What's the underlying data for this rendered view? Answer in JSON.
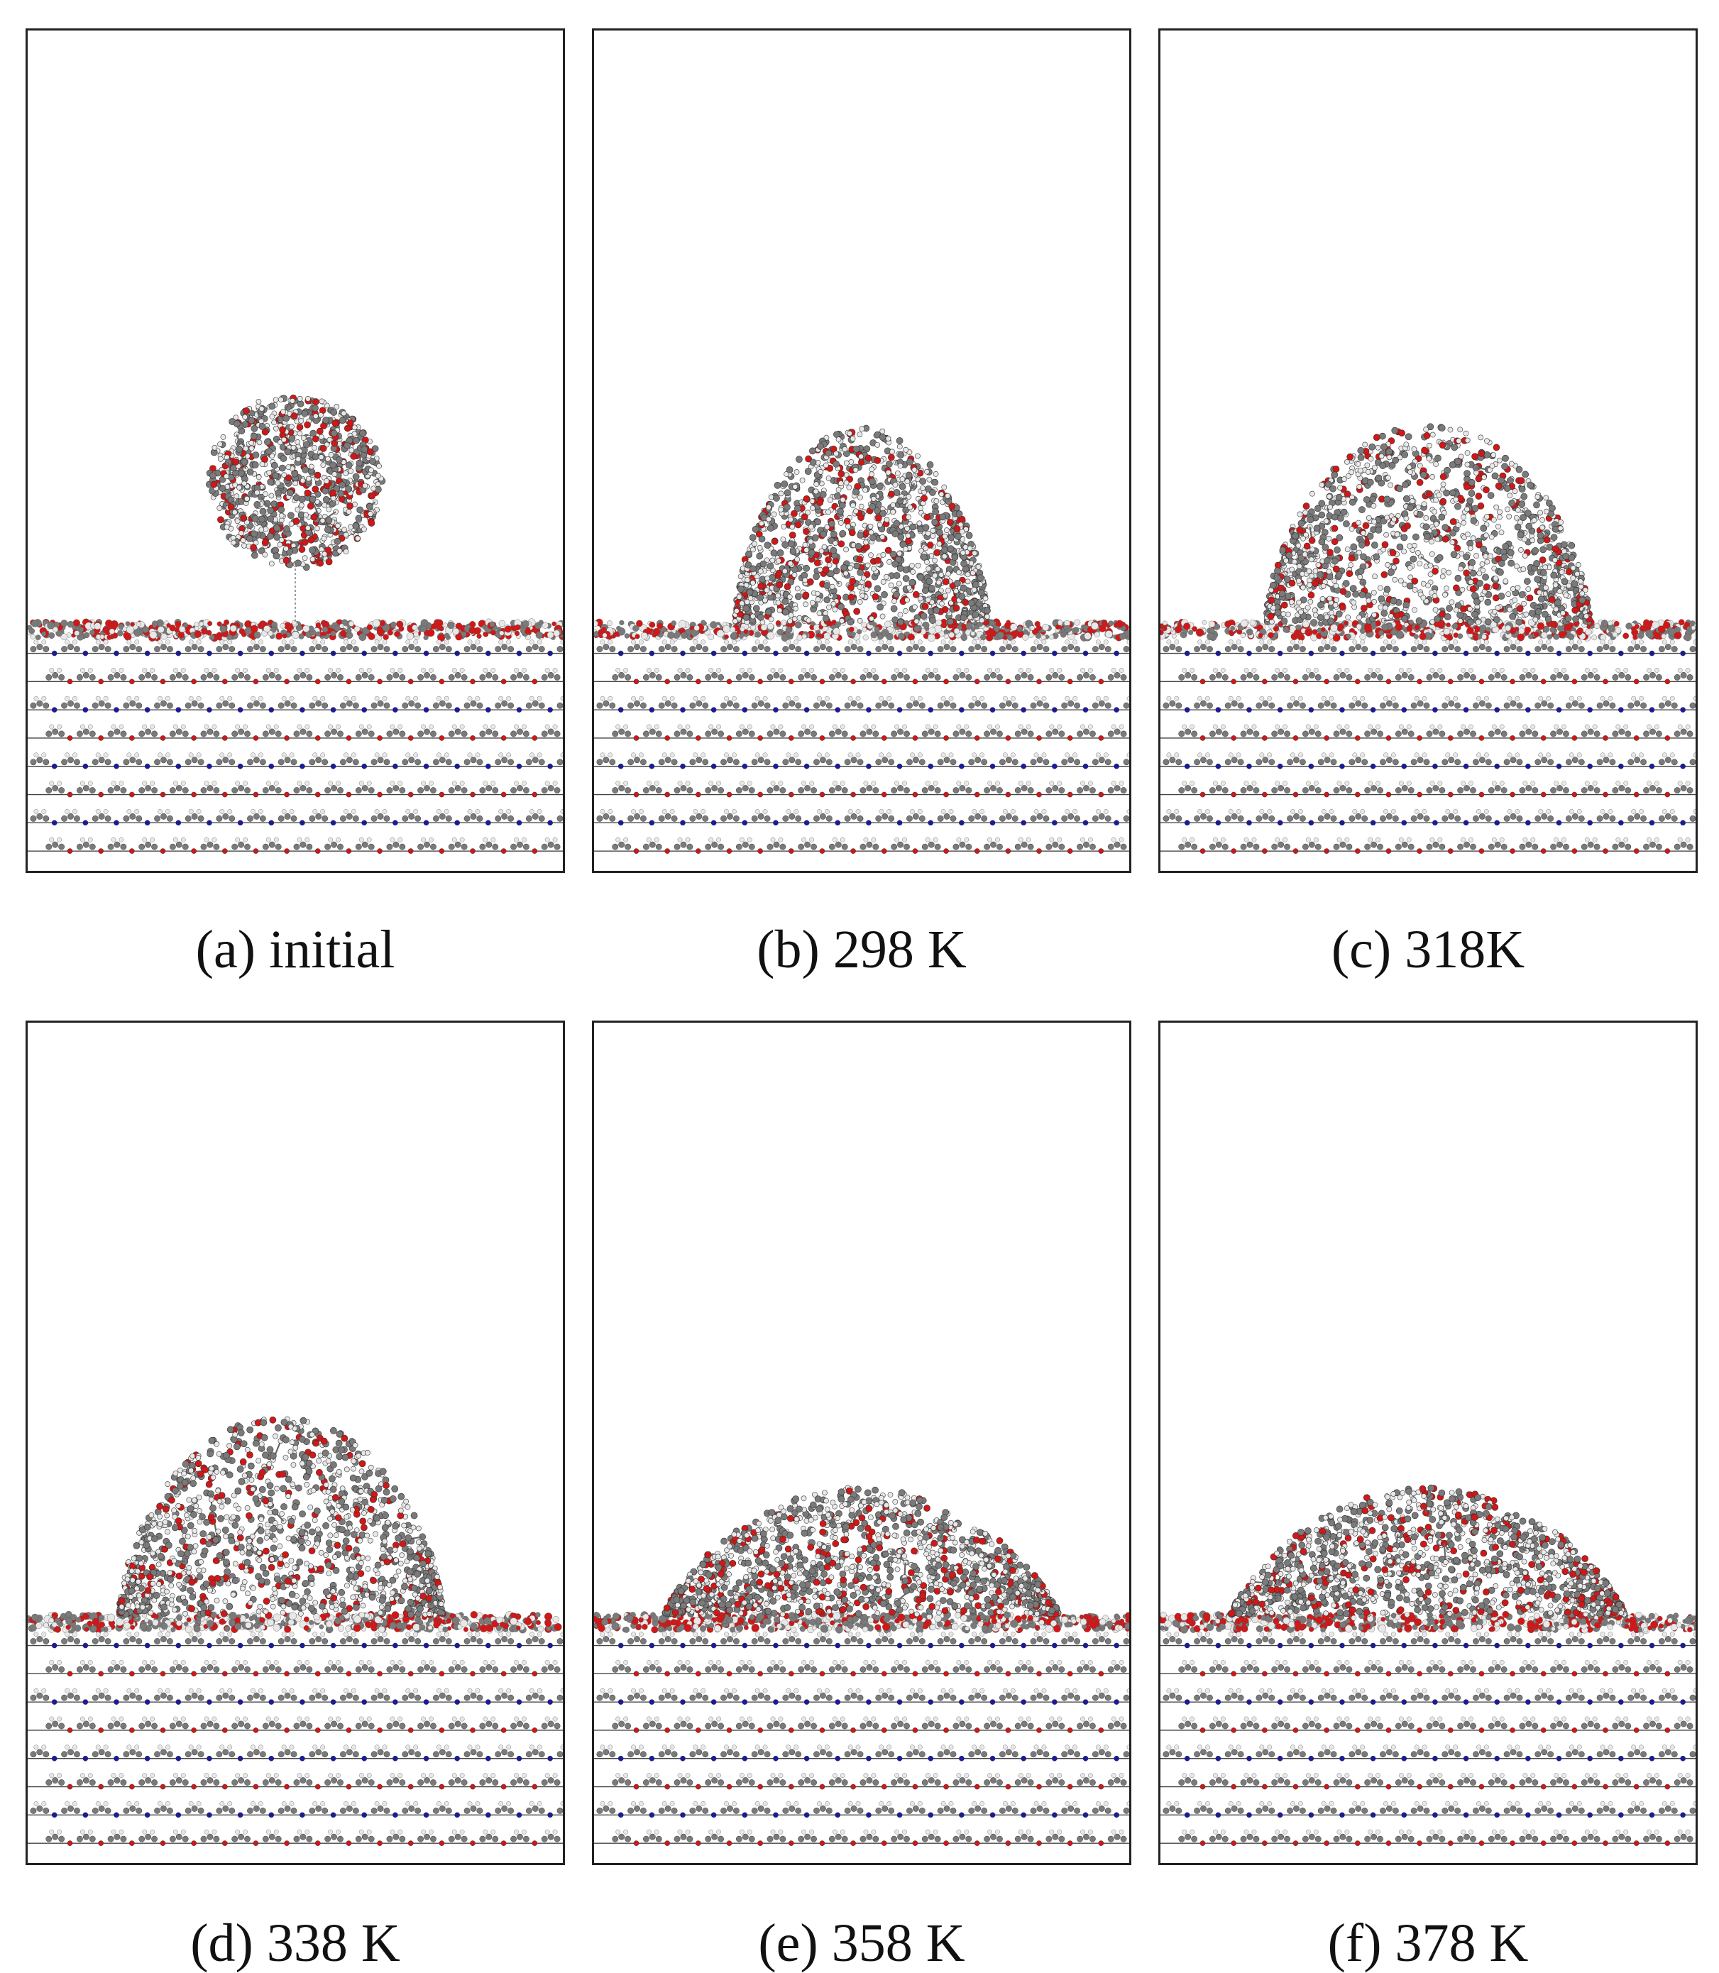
{
  "figure": {
    "panels": [
      {
        "caption": "(a) initial",
        "droplet_shape": "sphere"
      },
      {
        "caption": "(b) 298 K",
        "droplet_shape": "mound"
      },
      {
        "caption": "(c) 318K",
        "droplet_shape": "mound"
      },
      {
        "caption": "(d) 338 K",
        "droplet_shape": "mound"
      },
      {
        "caption": "(e) 358 K",
        "droplet_shape": "flat"
      },
      {
        "caption": "(f) 378 K",
        "droplet_shape": "flat"
      }
    ],
    "colors": {
      "carbon": "#7a7a7a",
      "hydrogen": "#e8e8e8",
      "oxygen": "#d01818",
      "nitrogen": "#1a1aa0",
      "frame": "#222222"
    }
  }
}
